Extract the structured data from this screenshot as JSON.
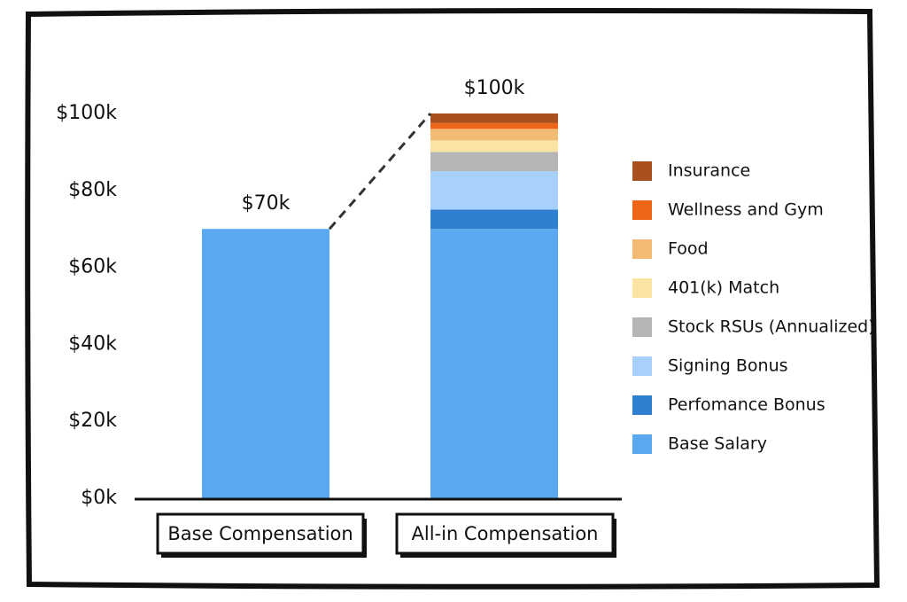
{
  "chart_data": {
    "type": "stacked-bar",
    "categories": [
      "Base Compensation",
      "All-in Compensation"
    ],
    "series": [
      {
        "name": "Base Salary",
        "color": "#5aa9f0",
        "values": [
          70,
          70
        ]
      },
      {
        "name": "Perfomance Bonus",
        "color": "#2f7fd0",
        "values": [
          null,
          5
        ]
      },
      {
        "name": "Signing Bonus",
        "color": "#a7d0fb",
        "values": [
          null,
          10
        ]
      },
      {
        "name": "Stock RSUs (Annualized)",
        "color": "#b5b5b5",
        "values": [
          null,
          5
        ]
      },
      {
        "name": "401(k) Match",
        "color": "#fbe3a3",
        "values": [
          null,
          3
        ]
      },
      {
        "name": "Food",
        "color": "#f2bb73",
        "values": [
          null,
          3
        ]
      },
      {
        "name": "Wellness and Gym",
        "color": "#ee6518",
        "values": [
          null,
          1.5
        ]
      },
      {
        "name": "Insurance",
        "color": "#a8501e",
        "values": [
          null,
          2.5
        ]
      }
    ],
    "totals": [
      {
        "value": 70,
        "label": "$70k"
      },
      {
        "value": 100,
        "label": "$100k"
      }
    ],
    "ylim": [
      0,
      100
    ],
    "yticks": [
      {
        "value": 0,
        "label": "$0k"
      },
      {
        "value": 20,
        "label": "$20k"
      },
      {
        "value": 40,
        "label": "$40k"
      },
      {
        "value": 60,
        "label": "$60k"
      },
      {
        "value": 80,
        "label": "$80k"
      },
      {
        "value": 100,
        "label": "$100k"
      }
    ],
    "legend": "right",
    "grid": false
  }
}
